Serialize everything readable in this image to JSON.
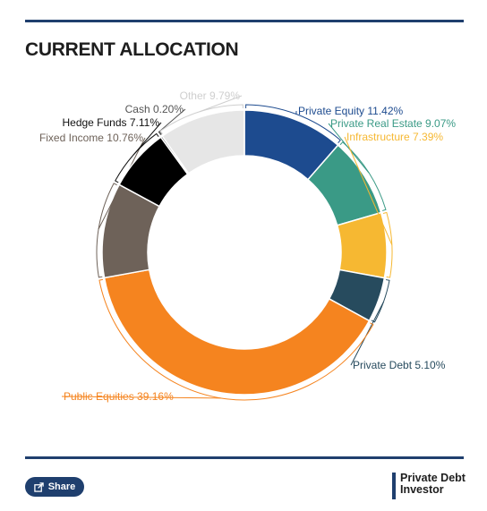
{
  "title": "CURRENT ALLOCATION",
  "share_label": "Share",
  "brand": {
    "line1": "Private Debt",
    "line2": "Investor"
  },
  "chart_data": {
    "type": "pie",
    "variant": "donut",
    "title": "CURRENT ALLOCATION",
    "slices": [
      {
        "label": "Private Equity",
        "value": 11.42,
        "display": "11.42%",
        "color": "#1d4b8f"
      },
      {
        "label": "Private Real Estate",
        "value": 9.07,
        "display": "9.07%",
        "color": "#3a9a86"
      },
      {
        "label": "Infrastructure",
        "value": 7.39,
        "display": "7.39%",
        "color": "#f6b832"
      },
      {
        "label": "Private Debt",
        "value": 5.1,
        "display": "5.10%",
        "color": "#274b5e"
      },
      {
        "label": "Public Equities",
        "value": 39.16,
        "display": "39.16%",
        "color": "#f5841f"
      },
      {
        "label": "Fixed Income",
        "value": 10.76,
        "display": "10.76%",
        "color": "#6e6259"
      },
      {
        "label": "Hedge Funds",
        "value": 7.11,
        "display": "7.11%",
        "color": "#000000"
      },
      {
        "label": "Cash",
        "value": 0.2,
        "display": "0.20%",
        "color": "#555555"
      },
      {
        "label": "Other",
        "value": 9.79,
        "display": "9.79%",
        "color": "#e6e6e6"
      }
    ]
  }
}
